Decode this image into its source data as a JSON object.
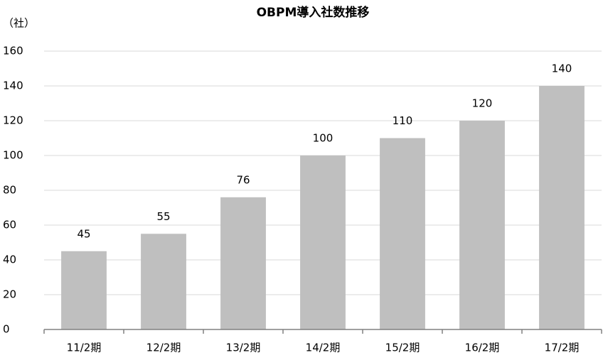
{
  "chart_data": {
    "type": "bar",
    "title": "OBPM導入社数推移",
    "y_axis_label": "（社）",
    "categories": [
      "11/2期",
      "12/2期",
      "13/2期",
      "14/2期",
      "15/2期",
      "16/2期",
      "17/2期"
    ],
    "values": [
      45,
      55,
      76,
      100,
      110,
      120,
      140
    ],
    "color": "#bfbfbf",
    "ylim": [
      0,
      160
    ],
    "yticks": [
      0,
      20,
      40,
      60,
      80,
      100,
      120,
      140,
      160
    ],
    "grid": true
  }
}
